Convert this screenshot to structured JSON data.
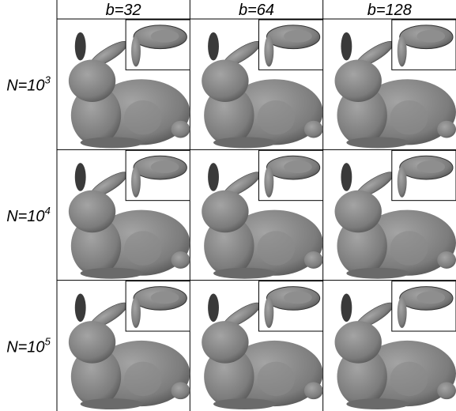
{
  "columns": [
    "b=32",
    "b=64",
    "b=128"
  ],
  "rows": [
    {
      "base": "N=10",
      "exponent": "3"
    },
    {
      "base": "N=10",
      "exponent": "4"
    },
    {
      "base": "N=10",
      "exponent": "5"
    }
  ]
}
